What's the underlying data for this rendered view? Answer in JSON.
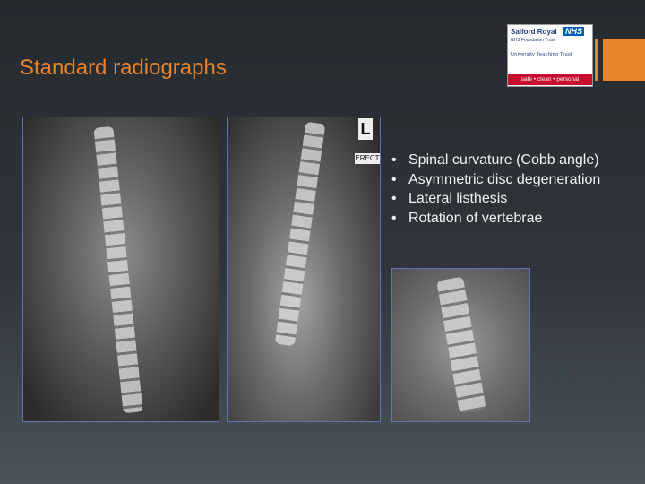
{
  "slide": {
    "title": "Standard radiographs",
    "logo": {
      "organisation": "Salford Royal",
      "nhs": "NHS",
      "trust": "NHS Foundation Trust",
      "teaching": "University Teaching Trust",
      "motto": "safe • clean • personal"
    },
    "radiograph_markers": {
      "side": "L",
      "position": "ERECT"
    },
    "bullets": [
      "Spinal curvature (Cobb angle)",
      "Asymmetric disc degeneration",
      "Lateral listhesis",
      "Rotation of vertebrae"
    ]
  }
}
